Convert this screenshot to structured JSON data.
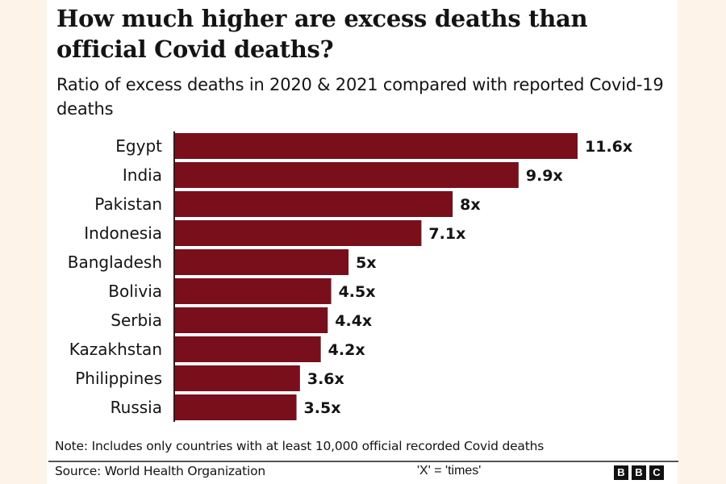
{
  "header": {
    "title": "How much higher are excess deaths than official Covid deaths?",
    "subtitle": "Ratio of excess deaths in 2020 & 2021 compared with reported Covid-19 deaths"
  },
  "footer": {
    "note": "Note: Includes only countries with at least 10,000 official recorded Covid deaths",
    "source": "Source: World Health Organization",
    "legend_note": "'X' = 'times'",
    "logo": [
      "B",
      "B",
      "C"
    ]
  },
  "colors": {
    "bar": "#7a0f1c",
    "text": "#141414",
    "background": "#fdf3e8"
  },
  "chart_data": {
    "type": "bar",
    "orientation": "horizontal",
    "title": "How much higher are excess deaths than official Covid deaths?",
    "subtitle": "Ratio of excess deaths in 2020 & 2021 compared with reported Covid-19 deaths",
    "xlabel": "",
    "ylabel": "",
    "categories": [
      "Egypt",
      "India",
      "Pakistan",
      "Indonesia",
      "Bangladesh",
      "Bolivia",
      "Serbia",
      "Kazakhstan",
      "Philippines",
      "Russia"
    ],
    "values": [
      11.6,
      9.9,
      8,
      7.1,
      5,
      4.5,
      4.4,
      4.2,
      3.6,
      3.5
    ],
    "data_labels": [
      "11.6x",
      "9.9x",
      "8x",
      "7.1x",
      "5x",
      "4.5x",
      "4.4x",
      "4.2x",
      "3.6x",
      "3.5x"
    ],
    "xlim": [
      0,
      11.6
    ],
    "grid": false,
    "legend": "none"
  }
}
